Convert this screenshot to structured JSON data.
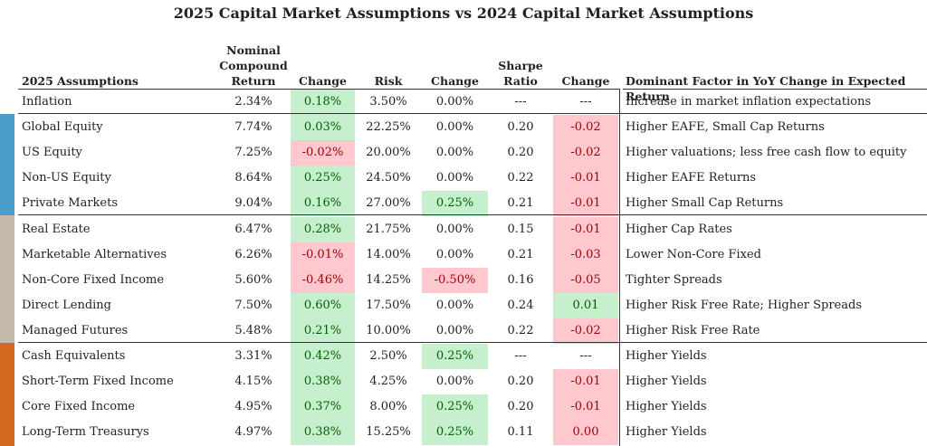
{
  "title": "2025 Capital Market Assumptions vs 2024 Capital Market Assumptions",
  "headers": {
    "asset": "2025 Assumptions",
    "nominal_l1": "Nominal",
    "nominal_l2": "Compound",
    "nominal_l3": "Return",
    "change1": "Change",
    "risk": "Risk",
    "change2": "Change",
    "sharpe_l1": "Sharpe",
    "sharpe_l2": "Ratio",
    "change3": "Change",
    "factor": "Dominant Factor in YoY Change in Expected Return"
  },
  "colors": {
    "positive_bg": "#c6efce",
    "positive_text": "#006100",
    "negative_bg": "#ffc7ce",
    "negative_text": "#9c0006",
    "equity_group": "#4a9fc8",
    "alternatives_group": "#c4b8a8",
    "fixed_income_group": "#d2691e"
  },
  "rows": [
    {
      "name": "Inflation",
      "ret": "2.34%",
      "chg_ret": "0.18%",
      "chg_ret_hl": "g",
      "risk": "3.50%",
      "chg_risk": "0.00%",
      "chg_risk_hl": "",
      "sharpe": "---",
      "chg_sharpe": "---",
      "chg_sharpe_hl": "",
      "factor": "Increase in market inflation expectations"
    },
    {
      "name": "Global Equity",
      "ret": "7.74%",
      "chg_ret": "0.03%",
      "chg_ret_hl": "g",
      "risk": "22.25%",
      "chg_risk": "0.00%",
      "chg_risk_hl": "",
      "sharpe": "0.20",
      "chg_sharpe": "-0.02",
      "chg_sharpe_hl": "r",
      "factor": "Higher EAFE, Small Cap Returns"
    },
    {
      "name": "US Equity",
      "ret": "7.25%",
      "chg_ret": "-0.02%",
      "chg_ret_hl": "r",
      "risk": "20.00%",
      "chg_risk": "0.00%",
      "chg_risk_hl": "",
      "sharpe": "0.20",
      "chg_sharpe": "-0.02",
      "chg_sharpe_hl": "r",
      "factor": "Higher valuations; less free cash flow to equity"
    },
    {
      "name": "Non-US Equity",
      "ret": "8.64%",
      "chg_ret": "0.25%",
      "chg_ret_hl": "g",
      "risk": "24.50%",
      "chg_risk": "0.00%",
      "chg_risk_hl": "",
      "sharpe": "0.22",
      "chg_sharpe": "-0.01",
      "chg_sharpe_hl": "r",
      "factor": "Higher EAFE Returns"
    },
    {
      "name": "Private Markets",
      "ret": "9.04%",
      "chg_ret": "0.16%",
      "chg_ret_hl": "g",
      "risk": "27.00%",
      "chg_risk": "0.25%",
      "chg_risk_hl": "g",
      "sharpe": "0.21",
      "chg_sharpe": "-0.01",
      "chg_sharpe_hl": "r",
      "factor": "Higher Small Cap Returns"
    },
    {
      "name": "Real Estate",
      "ret": "6.47%",
      "chg_ret": "0.28%",
      "chg_ret_hl": "g",
      "risk": "21.75%",
      "chg_risk": "0.00%",
      "chg_risk_hl": "",
      "sharpe": "0.15",
      "chg_sharpe": "-0.01",
      "chg_sharpe_hl": "r",
      "factor": "Higher Cap Rates"
    },
    {
      "name": "Marketable Alternatives",
      "ret": "6.26%",
      "chg_ret": "-0.01%",
      "chg_ret_hl": "r",
      "risk": "14.00%",
      "chg_risk": "0.00%",
      "chg_risk_hl": "",
      "sharpe": "0.21",
      "chg_sharpe": "-0.03",
      "chg_sharpe_hl": "r",
      "factor": "Lower Non-Core Fixed"
    },
    {
      "name": "Non-Core Fixed Income",
      "ret": "5.60%",
      "chg_ret": "-0.46%",
      "chg_ret_hl": "r",
      "risk": "14.25%",
      "chg_risk": "-0.50%",
      "chg_risk_hl": "r",
      "sharpe": "0.16",
      "chg_sharpe": "-0.05",
      "chg_sharpe_hl": "r",
      "factor": "Tighter Spreads"
    },
    {
      "name": "Direct Lending",
      "ret": "7.50%",
      "chg_ret": "0.60%",
      "chg_ret_hl": "g",
      "risk": "17.50%",
      "chg_risk": "0.00%",
      "chg_risk_hl": "",
      "sharpe": "0.24",
      "chg_sharpe": "0.01",
      "chg_sharpe_hl": "g",
      "factor": "Higher Risk Free Rate; Higher Spreads"
    },
    {
      "name": "Managed Futures",
      "ret": "5.48%",
      "chg_ret": "0.21%",
      "chg_ret_hl": "g",
      "risk": "10.00%",
      "chg_risk": "0.00%",
      "chg_risk_hl": "",
      "sharpe": "0.22",
      "chg_sharpe": "-0.02",
      "chg_sharpe_hl": "r",
      "factor": "Higher Risk Free Rate"
    },
    {
      "name": "Cash Equivalents",
      "ret": "3.31%",
      "chg_ret": "0.42%",
      "chg_ret_hl": "g",
      "risk": "2.50%",
      "chg_risk": "0.25%",
      "chg_risk_hl": "g",
      "sharpe": "---",
      "chg_sharpe": "---",
      "chg_sharpe_hl": "",
      "factor": "Higher Yields"
    },
    {
      "name": "Short-Term Fixed Income",
      "ret": "4.15%",
      "chg_ret": "0.38%",
      "chg_ret_hl": "g",
      "risk": "4.25%",
      "chg_risk": "0.00%",
      "chg_risk_hl": "",
      "sharpe": "0.20",
      "chg_sharpe": "-0.01",
      "chg_sharpe_hl": "r",
      "factor": "Higher Yields"
    },
    {
      "name": "Core Fixed Income",
      "ret": "4.95%",
      "chg_ret": "0.37%",
      "chg_ret_hl": "g",
      "risk": "8.00%",
      "chg_risk": "0.25%",
      "chg_risk_hl": "g",
      "sharpe": "0.20",
      "chg_sharpe": "-0.01",
      "chg_sharpe_hl": "r",
      "factor": "Higher Yields"
    },
    {
      "name": "Long-Term Treasurys",
      "ret": "4.97%",
      "chg_ret": "0.38%",
      "chg_ret_hl": "g",
      "risk": "15.25%",
      "chg_risk": "0.25%",
      "chg_risk_hl": "g",
      "sharpe": "0.11",
      "chg_sharpe": "0.00",
      "chg_sharpe_hl": "r",
      "factor": "Higher Yields"
    }
  ]
}
